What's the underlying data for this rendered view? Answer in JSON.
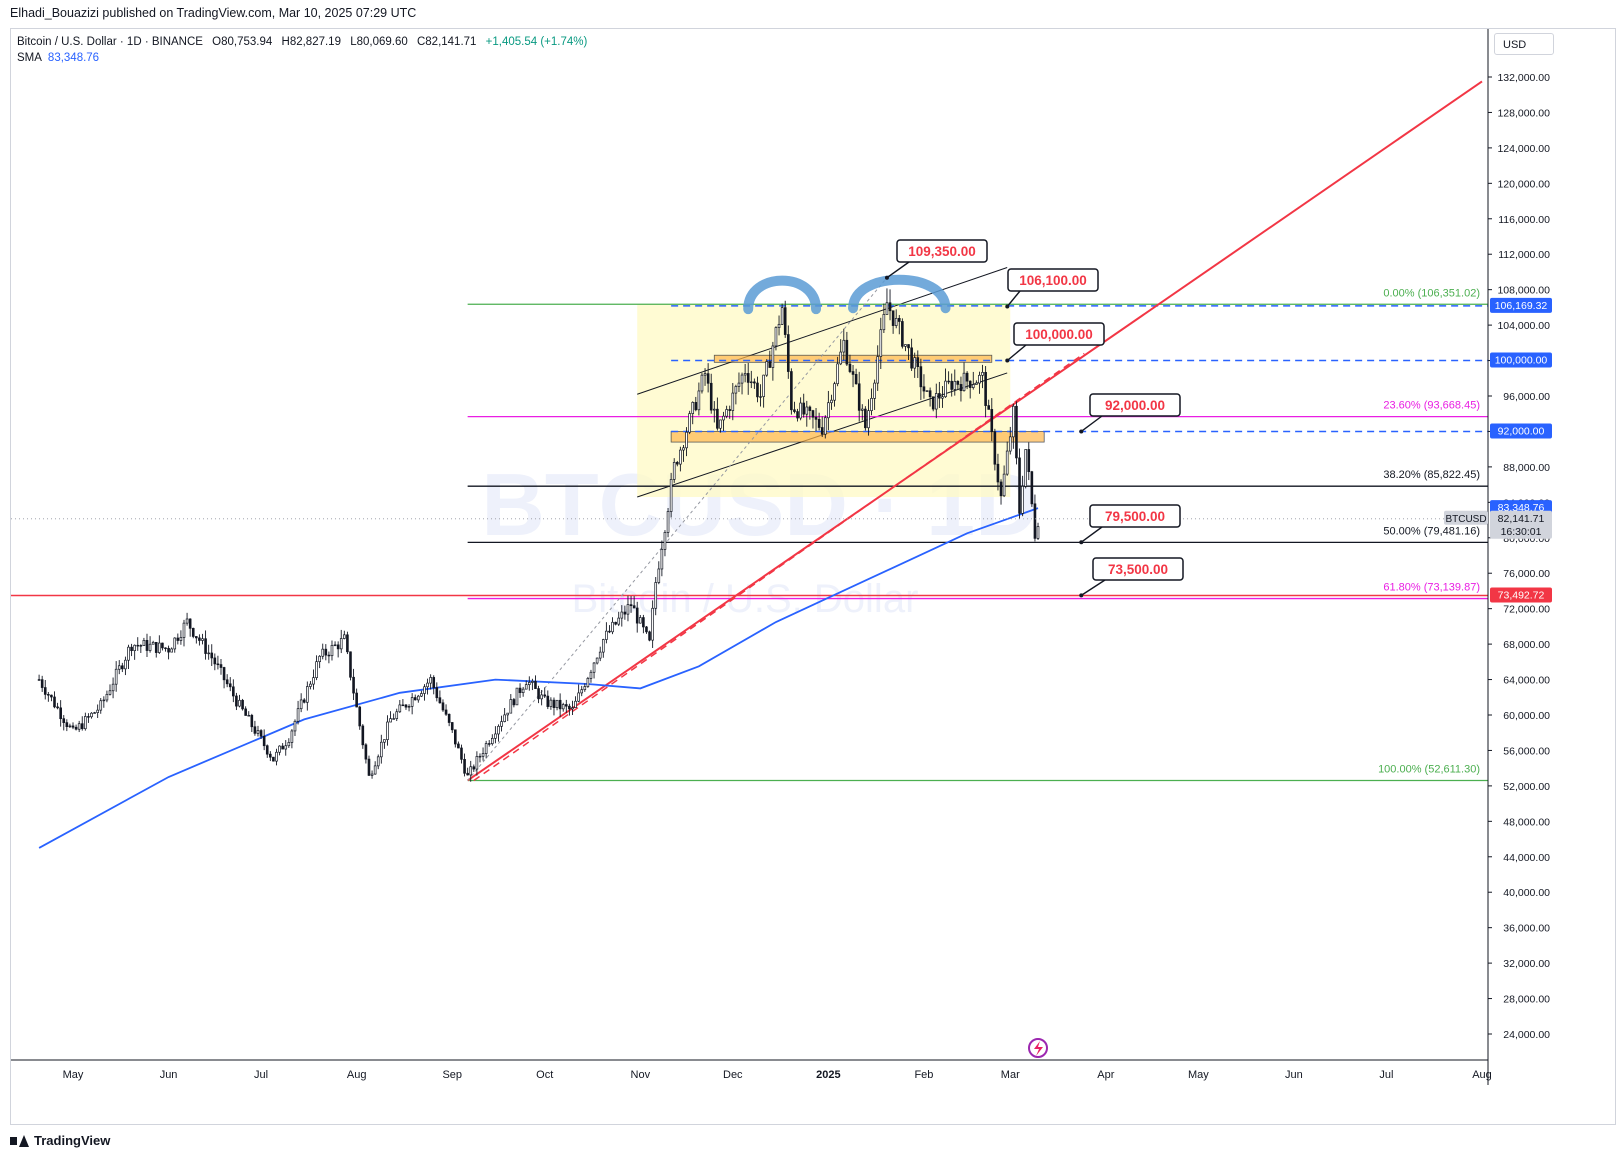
{
  "header": {
    "publisher": "Elhadi_Bouazizi published on TradingView.com, Mar 10, 2025 07:29 UTC"
  },
  "legend": {
    "symbol": "Bitcoin / U.S. Dollar · 1D · BINANCE",
    "open_label": "O",
    "open": "80,753.94",
    "high_label": "H",
    "high": "82,827.19",
    "low_label": "L",
    "low": "80,069.60",
    "close_label": "C",
    "close": "82,141.71",
    "change": "+1,405.54 (+1.74%)",
    "sma_label": "SMA",
    "sma_value": "83,348.76"
  },
  "currency": "USD",
  "watermark": {
    "line1": "BTCUSD · 1D",
    "line2": "Bitcoin / U.S. Dollar"
  },
  "footer": {
    "brand": "TradingView"
  },
  "colors": {
    "up": "#131722",
    "down": "#131722",
    "sma": "#2962ff",
    "trend": "#f23645",
    "fib_green": "#4caf50",
    "fib_magenta": "#e91ee3",
    "fib_black": "#131722",
    "dashed_blue": "#2962ff",
    "zone": "#ffb74d",
    "channel_fill": "#fff9c4",
    "dome": "#5b9bd5"
  },
  "chart_data": {
    "type": "candlestick",
    "title": "Bitcoin / U.S. Dollar · 1D · BINANCE",
    "ylim": [
      22000,
      136000
    ],
    "y_ticks": [
      "132,000.00",
      "128,000.00",
      "124,000.00",
      "120,000.00",
      "116,000.00",
      "112,000.00",
      "108,000.00",
      "104,000.00",
      "100,000.00",
      "96,000.00",
      "92,000.00",
      "88,000.00",
      "84,000.00",
      "80,000.00",
      "76,000.00",
      "72,000.00",
      "68,000.00",
      "64,000.00",
      "60,000.00",
      "56,000.00",
      "52,000.00",
      "48,000.00",
      "44,000.00",
      "40,000.00",
      "36,000.00",
      "32,000.00",
      "28,000.00",
      "24,000.00"
    ],
    "y_tick_values": [
      132000,
      128000,
      124000,
      120000,
      116000,
      112000,
      108000,
      104000,
      100000,
      96000,
      92000,
      88000,
      84000,
      80000,
      76000,
      72000,
      68000,
      64000,
      60000,
      56000,
      52000,
      48000,
      44000,
      40000,
      36000,
      32000,
      28000,
      24000
    ],
    "x_ticks": [
      "May",
      "Jun",
      "Jul",
      "Aug",
      "Sep",
      "Oct",
      "Nov",
      "Dec",
      "2025",
      "Feb",
      "Mar",
      "Apr",
      "May",
      "Jun",
      "Jul",
      "Aug"
    ],
    "x_tick_dates": [
      "2024-05-01",
      "2024-06-01",
      "2024-07-01",
      "2024-08-01",
      "2024-09-01",
      "2024-10-01",
      "2024-11-01",
      "2024-12-01",
      "2025-01-01",
      "2025-02-01",
      "2025-03-01",
      "2025-04-01",
      "2025-05-01",
      "2025-06-01",
      "2025-07-01",
      "2025-08-01"
    ],
    "x_range": [
      "2024-04-20",
      "2025-08-01"
    ],
    "price_path": [
      [
        "2024-04-20",
        64000
      ],
      [
        "2024-05-01",
        58000
      ],
      [
        "2024-05-10",
        61000
      ],
      [
        "2024-05-20",
        68000
      ],
      [
        "2024-06-01",
        67500
      ],
      [
        "2024-06-07",
        70500
      ],
      [
        "2024-06-15",
        66500
      ],
      [
        "2024-06-24",
        61000
      ],
      [
        "2024-07-05",
        55000
      ],
      [
        "2024-07-10",
        57500
      ],
      [
        "2024-07-20",
        66500
      ],
      [
        "2024-07-28",
        68500
      ],
      [
        "2024-08-05",
        53000
      ],
      [
        "2024-08-12",
        59500
      ],
      [
        "2024-08-25",
        64000
      ],
      [
        "2024-09-01",
        58000
      ],
      [
        "2024-09-06",
        53000
      ],
      [
        "2024-09-15",
        58500
      ],
      [
        "2024-09-25",
        64000
      ],
      [
        "2024-10-01",
        61500
      ],
      [
        "2024-10-10",
        60500
      ],
      [
        "2024-10-20",
        68500
      ],
      [
        "2024-10-29",
        72500
      ],
      [
        "2024-11-04",
        68000
      ],
      [
        "2024-11-06",
        75000
      ],
      [
        "2024-11-12",
        88000
      ],
      [
        "2024-11-22",
        98500
      ],
      [
        "2024-11-26",
        92000
      ],
      [
        "2024-12-05",
        99000
      ],
      [
        "2024-12-10",
        96000
      ],
      [
        "2024-12-17",
        106000
      ],
      [
        "2024-12-20",
        95000
      ],
      [
        "2024-12-30",
        92500
      ],
      [
        "2025-01-06",
        102000
      ],
      [
        "2025-01-13",
        92500
      ],
      [
        "2025-01-20",
        106500
      ],
      [
        "2025-01-27",
        101000
      ],
      [
        "2025-02-03",
        95000
      ],
      [
        "2025-02-10",
        97500
      ],
      [
        "2025-02-20",
        98000
      ],
      [
        "2025-02-26",
        84500
      ],
      [
        "2025-03-02",
        94000
      ],
      [
        "2025-03-04",
        83000
      ],
      [
        "2025-03-06",
        90000
      ],
      [
        "2025-03-09",
        80500
      ],
      [
        "2025-03-10",
        82141
      ]
    ],
    "sma": {
      "name": "SMA",
      "value": "83,348.76",
      "points": [
        [
          "2024-04-20",
          45000
        ],
        [
          "2024-06-01",
          53000
        ],
        [
          "2024-07-15",
          59500
        ],
        [
          "2024-08-15",
          62500
        ],
        [
          "2024-09-15",
          64000
        ],
        [
          "2024-10-15",
          63500
        ],
        [
          "2024-11-01",
          63000
        ],
        [
          "2024-11-20",
          65500
        ],
        [
          "2024-12-15",
          70500
        ],
        [
          "2025-01-15",
          75500
        ],
        [
          "2025-02-15",
          80500
        ],
        [
          "2025-03-10",
          83348
        ]
      ]
    },
    "fibonacci": [
      {
        "level": "0.00%",
        "price": 106351.02,
        "label": "0.00% (106,351.02)",
        "color": "#4caf50"
      },
      {
        "level": "23.60%",
        "price": 93668.45,
        "label": "23.60% (93,668.45)",
        "color": "#e91ee3"
      },
      {
        "level": "38.20%",
        "price": 85822.45,
        "label": "38.20% (85,822.45)",
        "color": "#131722"
      },
      {
        "level": "50.00%",
        "price": 79481.16,
        "label": "50.00% (79,481.16)",
        "color": "#131722"
      },
      {
        "level": "61.80%",
        "price": 73139.87,
        "label": "61.80% (73,139.87)",
        "color": "#e91ee3"
      },
      {
        "level": "100.00%",
        "price": 52611.3,
        "label": "100.00% (52,611.30)",
        "color": "#4caf50"
      }
    ],
    "annotations": [
      {
        "text": "109,350.00",
        "price": 109350,
        "date": "2025-01-20"
      },
      {
        "text": "106,100.00",
        "price": 106100,
        "date": "2025-03-01"
      },
      {
        "text": "100,000.00",
        "price": 100000,
        "date": "2025-03-01"
      },
      {
        "text": "92,000.00",
        "price": 92000,
        "date": "2025-03-25"
      },
      {
        "text": "79,500.00",
        "price": 79500,
        "date": "2025-03-25"
      },
      {
        "text": "73,500.00",
        "price": 73500,
        "date": "2025-03-25"
      }
    ],
    "price_labels": [
      {
        "text": "106,169.32",
        "price": 106169.32,
        "style": "blue"
      },
      {
        "text": "100,000.00",
        "price": 100000,
        "style": "blue"
      },
      {
        "text": "92,000.00",
        "price": 92000,
        "style": "blue"
      },
      {
        "text": "83,348.76",
        "price": 83348.76,
        "style": "blue"
      },
      {
        "text": "82,141.71",
        "price": 82141.71,
        "style": "gray",
        "symbol": "BTCUSD",
        "countdown": "16:30:01"
      },
      {
        "text": "73,492.72",
        "price": 73492.72,
        "style": "red"
      }
    ],
    "horizontal_lines": [
      {
        "price": 73492.72,
        "color": "#f23645",
        "from": "2024-04-20"
      }
    ],
    "dashed_levels": [
      106169.32,
      100000,
      92000
    ],
    "trendline": {
      "from": [
        "2024-09-06",
        52611
      ],
      "to": [
        "2025-08-01",
        131500
      ]
    },
    "zones": [
      {
        "from": "2024-11-25",
        "to": "2025-02-23",
        "low": 99800,
        "high": 100600
      },
      {
        "from": "2024-11-11",
        "to": "2025-03-12",
        "low": 90800,
        "high": 92000
      }
    ],
    "channel": {
      "upper": [
        [
          "2024-10-31",
          96200
        ],
        [
          "2025-02-28",
          110500
        ]
      ],
      "lower": [
        [
          "2024-10-31",
          84600
        ],
        [
          "2025-02-28",
          98600
        ]
      ]
    }
  }
}
